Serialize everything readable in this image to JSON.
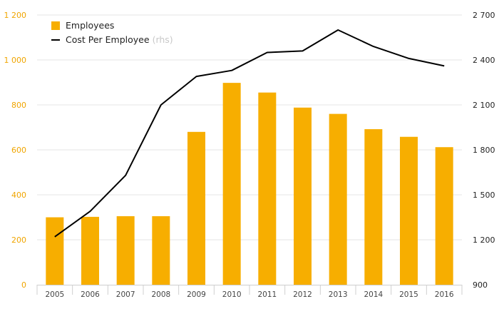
{
  "chart_data": {
    "type": "bar",
    "categories": [
      "2005",
      "2006",
      "2007",
      "2008",
      "2009",
      "2010",
      "2011",
      "2012",
      "2013",
      "2014",
      "2015",
      "2016"
    ],
    "series": [
      {
        "name": "Employees",
        "type": "bar",
        "axis": "left",
        "color": "#f7ae00",
        "values": [
          300,
          302,
          305,
          305,
          680,
          898,
          855,
          788,
          760,
          692,
          658,
          612
        ]
      },
      {
        "name": "Cost Per Employee",
        "name_suffix": "(rhs)",
        "type": "line",
        "axis": "right",
        "color": "#000000",
        "values": [
          1220,
          1390,
          1630,
          2100,
          2290,
          2330,
          2450,
          2460,
          2600,
          2490,
          2410,
          2360
        ]
      }
    ],
    "y_left": {
      "min": 0,
      "max": 1200,
      "ticks": [
        "0",
        "200",
        "400",
        "600",
        "800",
        "1 000",
        "1 200"
      ],
      "color": "#f0a500"
    },
    "y_right": {
      "min": 900,
      "max": 2700,
      "ticks": [
        "900",
        "1 200",
        "1 500",
        "1 800",
        "2 100",
        "2 400",
        "2 700"
      ]
    },
    "grid": true,
    "legend_position": "top-left"
  }
}
